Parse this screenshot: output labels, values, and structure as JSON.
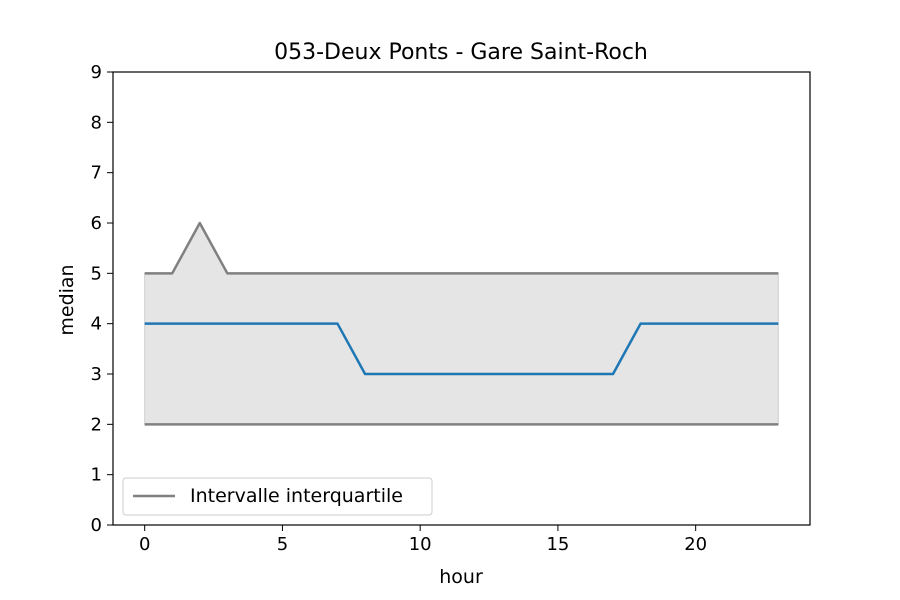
{
  "chart_data": {
    "type": "line",
    "title": "053-Deux Ponts - Gare Saint-Roch",
    "xlabel": "hour",
    "ylabel": "median",
    "xlim": [
      -1.15,
      24.15
    ],
    "ylim": [
      0,
      9
    ],
    "x_ticks": [
      0,
      5,
      10,
      15,
      20
    ],
    "y_ticks": [
      0,
      1,
      2,
      3,
      4,
      5,
      6,
      7,
      8,
      9
    ],
    "x": [
      0,
      1,
      2,
      3,
      4,
      5,
      6,
      7,
      8,
      9,
      10,
      11,
      12,
      13,
      14,
      15,
      16,
      17,
      18,
      19,
      20,
      21,
      22,
      23
    ],
    "series": [
      {
        "key": "median",
        "color": "#1f77b4",
        "values": [
          4,
          4,
          4,
          4,
          4,
          4,
          4,
          4,
          3,
          3,
          3,
          3,
          3,
          3,
          3,
          3,
          3,
          3,
          4,
          4,
          4,
          4,
          4,
          4
        ]
      },
      {
        "key": "q1",
        "color": "#808080",
        "values": [
          2,
          2,
          2,
          2,
          2,
          2,
          2,
          2,
          2,
          2,
          2,
          2,
          2,
          2,
          2,
          2,
          2,
          2,
          2,
          2,
          2,
          2,
          2,
          2
        ]
      },
      {
        "key": "q3",
        "color": "#808080",
        "values": [
          5,
          5,
          6,
          5,
          5,
          5,
          5,
          5,
          5,
          5,
          5,
          5,
          5,
          5,
          5,
          5,
          5,
          5,
          5,
          5,
          5,
          5,
          5,
          5
        ]
      }
    ],
    "band": {
      "lower": "q1",
      "upper": "q3",
      "color": "#e5e5e5"
    },
    "legend": {
      "placement": "lower-left",
      "entries": [
        {
          "label": "Intervalle interquartile",
          "color": "#808080"
        }
      ]
    },
    "grid": false
  }
}
